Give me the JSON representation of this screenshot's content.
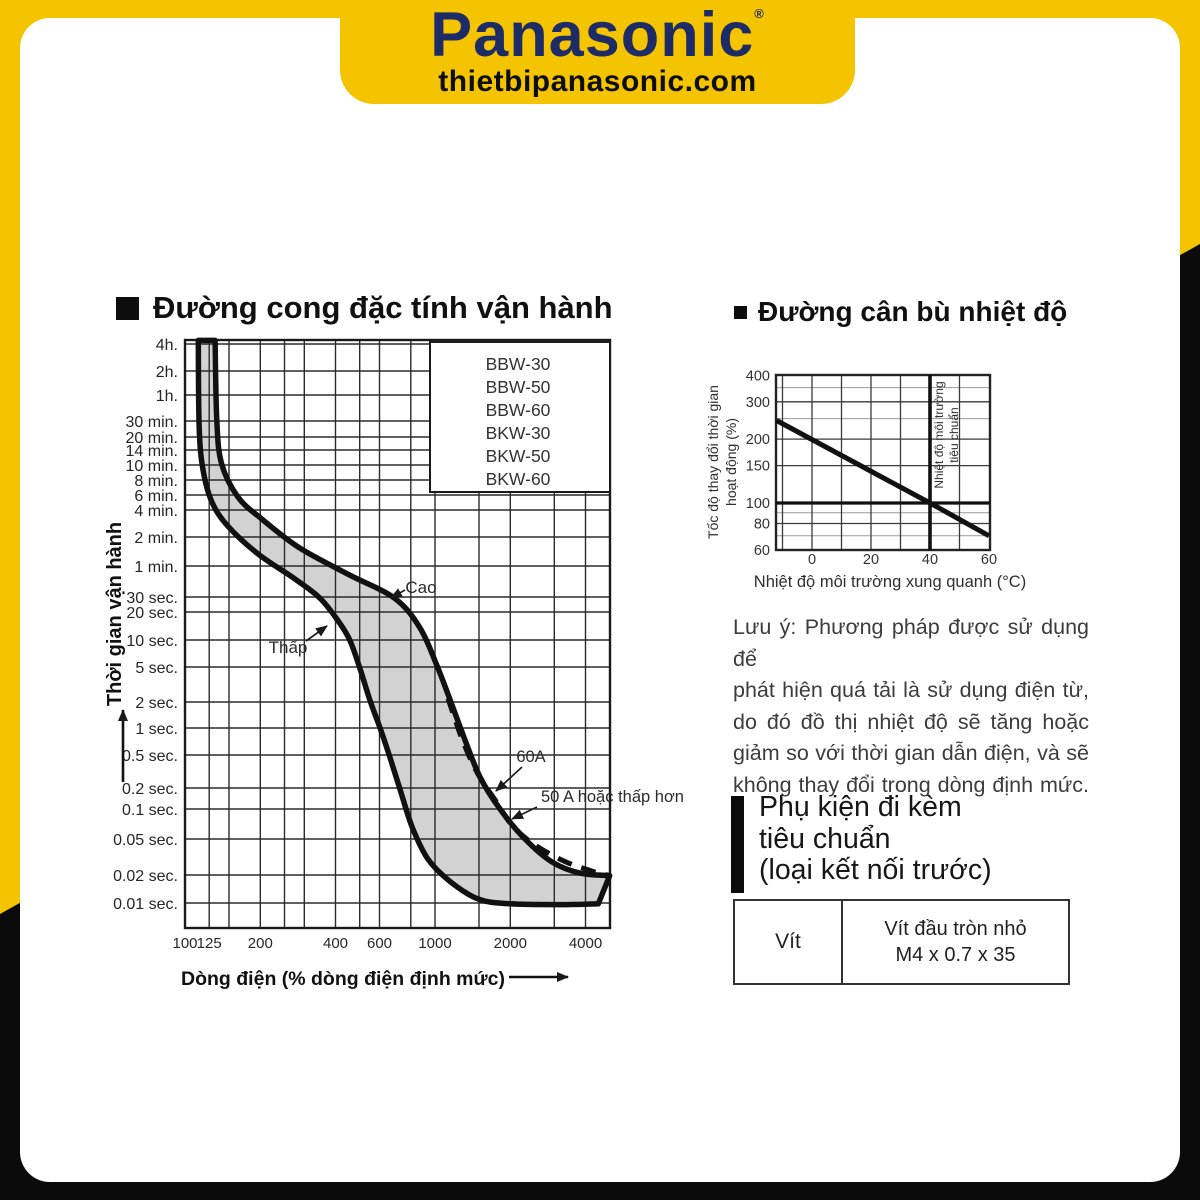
{
  "header": {
    "brand": "Panasonic",
    "mark": "®",
    "site": "thietbipanasonic.com"
  },
  "colors": {
    "accent_yellow": "#f5c400",
    "brand_navy": "#1d2b67",
    "frame_black": "#0b0b0b",
    "band_gray": "#d2d2d2"
  },
  "left_chart": {
    "title": "Đường cong đặc tính vận hành",
    "y_axis_title": "Thời gian vận hành",
    "x_axis_title": "Dòng điện (% dòng điện định mức)",
    "y_labels": [
      "4h.",
      "2h.",
      "1h.",
      "30 min.",
      "20 min.",
      "14 min.",
      "10 min.",
      "8 min.",
      "6 min.",
      "4 min.",
      "2 min.",
      "1 min.",
      "30 sec.",
      "20 sec.",
      "10 sec.",
      "5 sec.",
      "2 sec.",
      "1 sec.",
      "0.5 sec.",
      "0.2 sec.",
      "0.1 sec.",
      "0.05 sec.",
      "0.02 sec.",
      "0.01 sec."
    ],
    "x_labels": [
      "100",
      "125",
      "200",
      "400",
      "600",
      "1000",
      "2000",
      "4000"
    ],
    "legend": [
      "BBW-30",
      "BBW-50",
      "BBW-60",
      "BKW-30",
      "BKW-50",
      "BKW-60"
    ],
    "annotations": {
      "high": "Cao",
      "low": "Thấp",
      "a60": "60A",
      "a50": "50 A hoặc thấp hơn"
    }
  },
  "right_chart": {
    "title": "Đường cân bù nhiệt độ",
    "y_axis_title_line1": "Tốc độ thay đổi thời gian",
    "y_axis_title_line2": "hoạt động (%)",
    "x_axis_title": "Nhiệt độ môi trường xung quanh (°C)",
    "y_labels": [
      "400",
      "300",
      "200",
      "150",
      "100",
      "80",
      "60"
    ],
    "x_labels": [
      "0",
      "20",
      "40",
      "60"
    ],
    "ref_label_line1": "Nhiệt độ môi trường",
    "ref_label_line2": "tiêu chuẩn"
  },
  "note": {
    "lines": [
      "Lưu ý: Phương pháp được sử dụng để",
      "phát hiện quá tải là sử dụng điện từ,",
      "do đó đồ thị nhiệt độ sẽ tăng hoặc",
      "giảm so với thời gian dẫn điện, và sẽ",
      "không thay đổi trong dòng định mức."
    ]
  },
  "accessories": {
    "heading_line1": "Phụ kiện đi kèm",
    "heading_line2": "tiêu chuẩn",
    "heading_line3": "(loại kết nối trước)",
    "table": {
      "col1": "Vít",
      "col2_line1": "Vít đầu tròn nhỏ",
      "col2_line2": "M4 x 0.7 x 35"
    }
  },
  "chart_data": [
    {
      "type": "area",
      "title": "Đường cong đặc tính vận hành",
      "xlabel": "Dòng điện (% dòng điện định mức)",
      "ylabel": "Thời gian vận hành",
      "x_scale": "log",
      "y_scale": "log",
      "xlim": [
        100,
        5000
      ],
      "x_ticks": [
        100,
        125,
        200,
        400,
        600,
        1000,
        2000,
        4000
      ],
      "y_ticks_sec": [
        14400,
        7200,
        3600,
        1800,
        1200,
        840,
        600,
        480,
        360,
        240,
        120,
        60,
        30,
        20,
        10,
        5,
        2,
        1,
        0.5,
        0.2,
        0.1,
        0.05,
        0.02,
        0.01
      ],
      "legend": [
        "BBW-30",
        "BBW-50",
        "BBW-60",
        "BKW-30",
        "BKW-50",
        "BKW-60"
      ],
      "series": [
        {
          "name": "Cao",
          "points": [
            [
              132,
              15800
            ],
            [
              134,
              1850
            ],
            [
              140,
              620
            ],
            [
              163,
              340
            ],
            [
              203,
              190
            ],
            [
              288,
              92
            ],
            [
              456,
              49
            ],
            [
              690,
              29
            ],
            [
              871,
              13.5
            ],
            [
              1020,
              5.1
            ],
            [
              1150,
              2.1
            ],
            [
              1320,
              0.73
            ],
            [
              1515,
              0.27
            ],
            [
              1820,
              0.1
            ],
            [
              2290,
              0.05
            ],
            [
              2930,
              0.028
            ],
            [
              3800,
              0.021
            ],
            [
              5000,
              0.0197
            ]
          ]
        },
        {
          "name": "Thấp",
          "points": [
            [
              113,
              15800
            ],
            [
              114,
              1500
            ],
            [
              118,
              560
            ],
            [
              128,
              300
            ],
            [
              148,
              160
            ],
            [
              196,
              80
            ],
            [
              275,
              45
            ],
            [
              347,
              29
            ],
            [
              410,
              16
            ],
            [
              456,
              10
            ],
            [
              500,
              4.9
            ],
            [
              549,
              2.1
            ],
            [
              603,
              1.0
            ],
            [
              660,
              0.47
            ],
            [
              725,
              0.19
            ],
            [
              810,
              0.066
            ],
            [
              937,
              0.03
            ],
            [
              1150,
              0.017
            ],
            [
              1490,
              0.011
            ],
            [
              2000,
              0.0098
            ],
            [
              3160,
              0.0096
            ],
            [
              4500,
              0.0098
            ]
          ]
        },
        {
          "name": "50 A hoặc thấp hơn",
          "style": "dashed",
          "points": [
            [
              1127,
              2.2
            ],
            [
              1288,
              0.73
            ],
            [
              1480,
              0.3
            ],
            [
              1740,
              0.135
            ],
            [
              2030,
              0.069
            ],
            [
              2510,
              0.043
            ],
            [
              3330,
              0.028
            ],
            [
              4390,
              0.0215
            ],
            [
              5000,
              0.0198
            ]
          ]
        }
      ]
    },
    {
      "type": "line",
      "title": "Đường cân bù nhiệt độ",
      "xlabel": "Nhiệt độ môi trường xung quanh (°C)",
      "ylabel": "Tốc độ thay đổi thời gian hoạt động (%)",
      "xlim": [
        -12,
        60
      ],
      "ylim": [
        60,
        400
      ],
      "y_scale": "log",
      "x_ticks": [
        0,
        20,
        40,
        60
      ],
      "y_ticks": [
        60,
        80,
        100,
        150,
        200,
        300,
        400
      ],
      "series": [
        {
          "name": "temperature-compensation",
          "points": [
            [
              -12,
              245
            ],
            [
              40,
              100
            ],
            [
              60,
              70
            ]
          ]
        }
      ],
      "reference_lines": {
        "h": 100,
        "v": 40
      },
      "reference_label": "Nhiệt độ môi trường tiêu chuẩn"
    }
  ]
}
